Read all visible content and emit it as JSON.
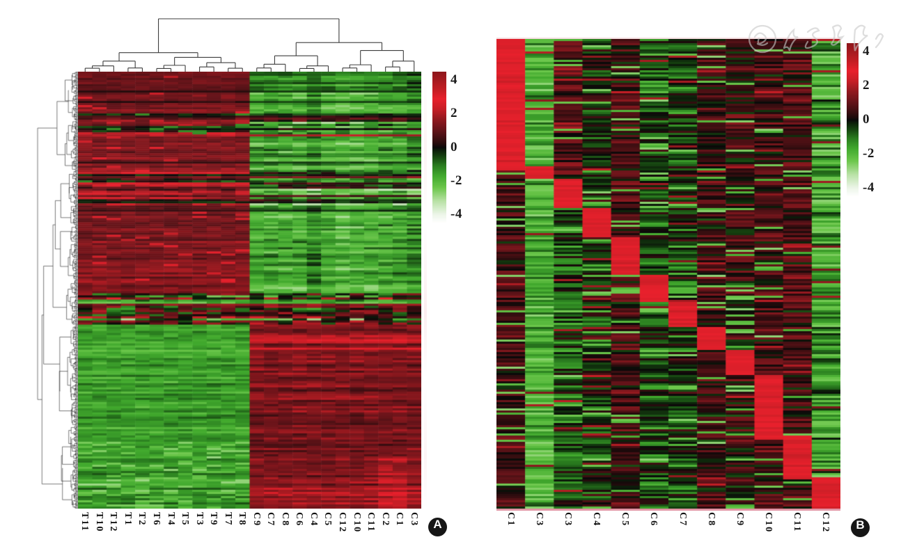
{
  "figure": {
    "kind": "two-panel gene-expression heatmap figure",
    "background": "#ffffff",
    "panel_labels": [
      "A",
      "B"
    ]
  },
  "watermark": {
    "text": "中华医学会",
    "style": "faint gray circular seal with cursive script characters, top-right corner",
    "color": "#c8c8c8"
  },
  "colormap": {
    "domain": [
      -4.5,
      4.5
    ],
    "stops": [
      [
        -4.5,
        "#ffffff"
      ],
      [
        -4.0,
        "#edf6e9"
      ],
      [
        -3.2,
        "#b9e2a6"
      ],
      [
        -2.4,
        "#6cc74b"
      ],
      [
        -1.7,
        "#42aa2e"
      ],
      [
        -1.1,
        "#2b7f20"
      ],
      [
        -0.5,
        "#143f0f"
      ],
      [
        -0.15,
        "#0c1c0a"
      ],
      [
        0.0,
        "#0a0909"
      ],
      [
        0.15,
        "#1d0a0b"
      ],
      [
        0.5,
        "#3c0e11"
      ],
      [
        1.1,
        "#69141a"
      ],
      [
        1.7,
        "#93191f"
      ],
      [
        2.3,
        "#c71e26"
      ],
      [
        2.9,
        "#e8202c"
      ],
      [
        3.5,
        "#c11d23"
      ],
      [
        4.5,
        "#8e171b"
      ]
    ]
  },
  "chart_data": [
    {
      "id": "A",
      "type": "heatmap",
      "badge": "A",
      "clustered": true,
      "columns": [
        "T11",
        "T10",
        "T12",
        "T1",
        "T2",
        "T6",
        "T4",
        "T5",
        "T3",
        "T9",
        "T7",
        "T8",
        "C9",
        "C7",
        "C8",
        "C6",
        "C4",
        "C5",
        "C12",
        "C10",
        "C11",
        "C2",
        "C1",
        "C3"
      ],
      "n_rows": 209,
      "legend": {
        "ticks": [
          "4",
          "2",
          "0",
          "-2",
          "-4"
        ],
        "tick_values": [
          4,
          2,
          0,
          -2,
          -4
        ]
      },
      "expression_pattern": {
        "description": "Hierarchically clustered differential expression: upper ~52% of genes up-regulated in T samples (dark red) and down in C samples (green); lower ~48% reversed; noisy mixed bands near rows 10-15%, 22-30% and the 51-58% transition.",
        "split_row_frac": 0.515,
        "upper_means": {
          "T": 1.35,
          "C": -1.55
        },
        "lower_means": {
          "T": -1.5,
          "C": 1.35
        },
        "mixed_bands": [
          [
            0.095,
            0.148
          ],
          [
            0.225,
            0.305
          ]
        ],
        "noise_band": [
          0.507,
          0.578
        ],
        "red_stripe_band_C": [
          0.6,
          0.64
        ],
        "seed": 20
      },
      "row_dendrogram": {
        "side": "left",
        "n_leaves": 500,
        "seed": 77
      },
      "column_dendrogram": {
        "h": 1.0,
        "c": [
          {
            "h": 0.36,
            "c": [
              {
                "h": 0.2,
                "c": [
                  {
                    "h": 0.11,
                    "c": [
                      {
                        "h": 0.065,
                        "c": [
                          "T11",
                          "T10"
                        ]
                      },
                      "T12"
                    ]
                  },
                  {
                    "h": 0.07,
                    "c": [
                      "T1",
                      "T2"
                    ]
                  }
                ]
              },
              {
                "h": 0.27,
                "c": [
                  {
                    "h": 0.12,
                    "c": [
                      {
                        "h": 0.06,
                        "c": [
                          "T6",
                          "T4"
                        ]
                      },
                      "T5"
                    ]
                  },
                  {
                    "h": 0.17,
                    "c": [
                      {
                        "h": 0.09,
                        "c": [
                          "T3",
                          "T9"
                        ]
                      },
                      {
                        "h": 0.065,
                        "c": [
                          "T7",
                          "T8"
                        ]
                      }
                    ]
                  }
                ]
              }
            ]
          },
          {
            "h": 0.55,
            "c": [
              {
                "h": 0.3,
                "c": [
                  {
                    "h": 0.14,
                    "c": [
                      {
                        "h": 0.07,
                        "c": [
                          "C9",
                          "C7"
                        ]
                      },
                      "C8"
                    ]
                  },
                  {
                    "h": 0.11,
                    "c": [
                      {
                        "h": 0.06,
                        "c": [
                          "C6",
                          "C4"
                        ]
                      },
                      "C5"
                    ]
                  }
                ]
              },
              {
                "h": 0.4,
                "c": [
                  {
                    "h": 0.13,
                    "c": [
                      {
                        "h": 0.07,
                        "c": [
                          "C12",
                          "C10"
                        ]
                      },
                      "C11"
                    ]
                  },
                  {
                    "h": 0.2,
                    "c": [
                      {
                        "h": 0.09,
                        "c": [
                          "C2",
                          "C1"
                        ]
                      },
                      "C3"
                    ]
                  }
                ]
              }
            ]
          }
        ]
      }
    },
    {
      "id": "B",
      "type": "heatmap",
      "badge": "B",
      "clustered": false,
      "columns": [
        "C1",
        "C3",
        "C3",
        "C4",
        "C5",
        "C6",
        "C7",
        "C8",
        "C9",
        "C10",
        "C11",
        "C12"
      ],
      "n_rows": 225,
      "legend": {
        "ticks": [
          "4",
          "2",
          "0",
          "-2",
          "-4"
        ],
        "tick_values": [
          4,
          2,
          0,
          -2,
          -4
        ]
      },
      "hot_value": 2.75,
      "seed": 99,
      "pattern_description": "Each sample column carries a bright-red high-expression block stepping diagonally from top-left (C1) to bottom-right (C12); backgrounds are mixed dark red/black/green with bright green striping in columns 2 and 12.",
      "column_profiles": [
        {
          "label": "C1",
          "mean": 0.55,
          "row_sd": 0.5,
          "cell_sd": 0.7,
          "green_stripe_prob": 0.12,
          "hot_block": [
            0.0,
            0.28
          ]
        },
        {
          "label": "C3",
          "mean": -1.7,
          "row_sd": 0.5,
          "cell_sd": 0.8,
          "green_stripe_prob": 0.3,
          "hot_block": [
            0.268,
            0.295
          ]
        },
        {
          "label": "C3",
          "mean": -0.6,
          "row_sd": 0.5,
          "cell_sd": 0.9,
          "green_stripe_prob": 0.1,
          "hot_block": [
            0.295,
            0.36
          ],
          "upper_mean": 0.9,
          "upper_until": 0.29
        },
        {
          "label": "C4",
          "mean": -0.2,
          "row_sd": 0.5,
          "cell_sd": 0.85,
          "green_stripe_prob": 0.1,
          "hot_block": [
            0.36,
            0.42
          ]
        },
        {
          "label": "C5",
          "mean": 0.55,
          "row_sd": 0.5,
          "cell_sd": 0.8,
          "green_stripe_prob": 0.08,
          "hot_block": [
            0.42,
            0.5
          ]
        },
        {
          "label": "C6",
          "mean": -0.5,
          "row_sd": 0.5,
          "cell_sd": 0.9,
          "green_stripe_prob": 0.14,
          "hot_block": [
            0.5,
            0.556
          ]
        },
        {
          "label": "C7",
          "mean": -0.45,
          "row_sd": 0.5,
          "cell_sd": 0.9,
          "green_stripe_prob": 0.12,
          "hot_block": [
            0.556,
            0.61
          ]
        },
        {
          "label": "C8",
          "mean": 0.45,
          "row_sd": 0.5,
          "cell_sd": 0.8,
          "green_stripe_prob": 0.08,
          "hot_block": [
            0.61,
            0.66
          ]
        },
        {
          "label": "C9",
          "mean": 0.35,
          "row_sd": 0.5,
          "cell_sd": 0.9,
          "green_stripe_prob": 0.18,
          "hot_block": [
            0.66,
            0.712
          ]
        },
        {
          "label": "C10",
          "mean": 0.6,
          "row_sd": 0.5,
          "cell_sd": 0.8,
          "green_stripe_prob": 0.08,
          "hot_block": [
            0.712,
            0.85
          ]
        },
        {
          "label": "C11",
          "mean": 0.65,
          "row_sd": 0.5,
          "cell_sd": 0.8,
          "green_stripe_prob": 0.07,
          "hot_block": [
            0.843,
            0.935
          ]
        },
        {
          "label": "C12",
          "mean": -1.35,
          "row_sd": 0.5,
          "cell_sd": 1.0,
          "green_stripe_prob": 0.28,
          "hot_block": [
            0.93,
            1.0
          ]
        }
      ]
    }
  ]
}
